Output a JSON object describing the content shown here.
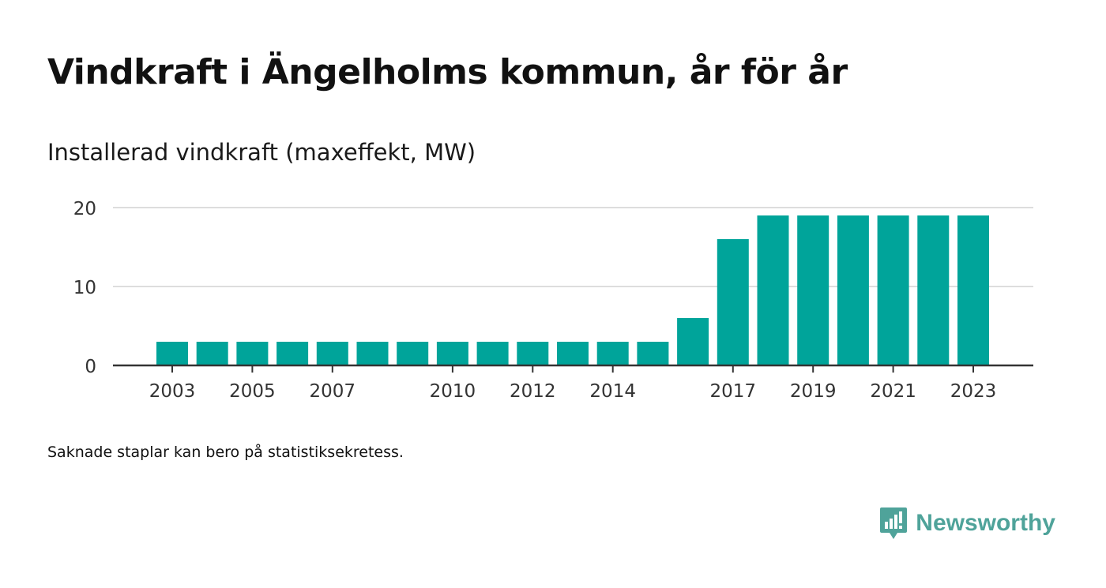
{
  "title": "Vindkraft i Ängelholms kommun, år för år",
  "subtitle": "Installerad vindkraft (maxeffekt, MW)",
  "note": "Saknade staplar kan bero på statistiksekretess.",
  "brand": {
    "name": "Newsworthy",
    "color": "#4fa39a",
    "icon": "newsworthy-chart-bubble-icon"
  },
  "colors": {
    "bar": "#00a49a",
    "grid": "#dddddd",
    "axis": "#333333"
  },
  "chart_data": {
    "type": "bar",
    "title": "Vindkraft i Ängelholms kommun, år för år",
    "ylabel": "Installerad vindkraft (maxeffekt, MW)",
    "xlabel": "",
    "categories": [
      "2003",
      "2004",
      "2005",
      "2006",
      "2007",
      "2008",
      "2009",
      "2010",
      "2011",
      "2012",
      "2013",
      "2014",
      "2015",
      "2016",
      "2017",
      "2018",
      "2019",
      "2020",
      "2021",
      "2022",
      "2023"
    ],
    "values": [
      3,
      3,
      3,
      3,
      3,
      3,
      3,
      3,
      3,
      3,
      3,
      3,
      3,
      6,
      16,
      19,
      19,
      19,
      19,
      19,
      19
    ],
    "x_tick_labels": [
      "2003",
      "2005",
      "2007",
      "2010",
      "2012",
      "2014",
      "2017",
      "2019",
      "2021",
      "2023"
    ],
    "y_ticks": [
      0,
      10,
      20
    ],
    "ylim": [
      0,
      20
    ],
    "grid": true,
    "legend": "none"
  }
}
